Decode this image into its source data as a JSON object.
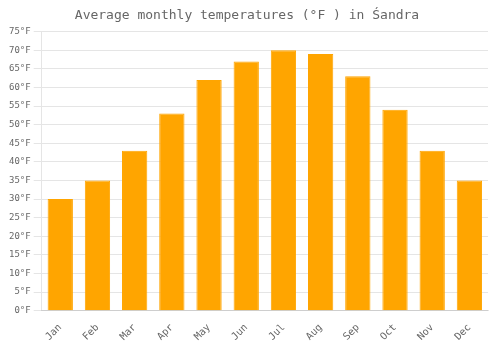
{
  "chart_data": {
    "type": "bar",
    "title": "Average monthly temperatures (°F ) in Śandra",
    "categories": [
      "Jan",
      "Feb",
      "Mar",
      "Apr",
      "May",
      "Jun",
      "Jul",
      "Aug",
      "Sep",
      "Oct",
      "Nov",
      "Dec"
    ],
    "values": [
      30,
      35,
      43,
      53,
      62,
      67,
      70,
      69,
      63,
      54,
      43,
      35
    ],
    "color": "#FFA500",
    "ylim": [
      0,
      75
    ],
    "yticks": [
      {
        "value": 0,
        "label": "0°F"
      },
      {
        "value": 5,
        "label": "5°F"
      },
      {
        "value": 10,
        "label": "10°F"
      },
      {
        "value": 15,
        "label": "15°F"
      },
      {
        "value": 20,
        "label": "20°F"
      },
      {
        "value": 25,
        "label": "25°F"
      },
      {
        "value": 30,
        "label": "30°F"
      },
      {
        "value": 35,
        "label": "35°F"
      },
      {
        "value": 40,
        "label": "40°F"
      },
      {
        "value": 45,
        "label": "45°F"
      },
      {
        "value": 50,
        "label": "50°F"
      },
      {
        "value": 55,
        "label": "55°F"
      },
      {
        "value": 60,
        "label": "60°F"
      },
      {
        "value": 65,
        "label": "65°F"
      },
      {
        "value": 70,
        "label": "70°F"
      },
      {
        "value": 75,
        "label": "75°F"
      }
    ],
    "grid": true
  }
}
